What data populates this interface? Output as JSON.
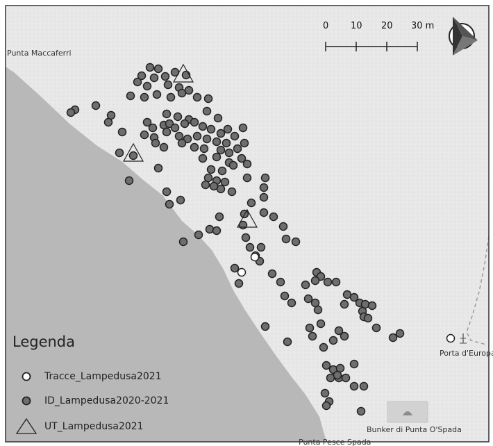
{
  "map": {
    "place_labels": {
      "punta_maccaferri": "Punta Maccaferri",
      "porta_europa": "Porta d'Europa",
      "bunker": "Bunker di Punta O'Spada",
      "punta_pesce_spada": "Punta Pesce Spada"
    },
    "scale_bar": {
      "ticks": [
        "0",
        "10",
        "20",
        "30 m"
      ]
    },
    "north_arrow_icon": "north-arrow-icon",
    "colors": {
      "land": "#e6e6e6",
      "sea": "#b9b9b9",
      "id_point_fill": "#6e6e6e",
      "tracce_fill": "#ffffff",
      "frame": "#333333"
    }
  },
  "legend": {
    "title": "Legenda",
    "items": [
      {
        "label": "Tracce_Lampedusa2021",
        "symbol": "white-circle"
      },
      {
        "label": "ID_Lampedusa2020-2021",
        "symbol": "grey-circle"
      },
      {
        "label": "UT_Lampedusa2021",
        "symbol": "triangle"
      }
    ]
  }
}
